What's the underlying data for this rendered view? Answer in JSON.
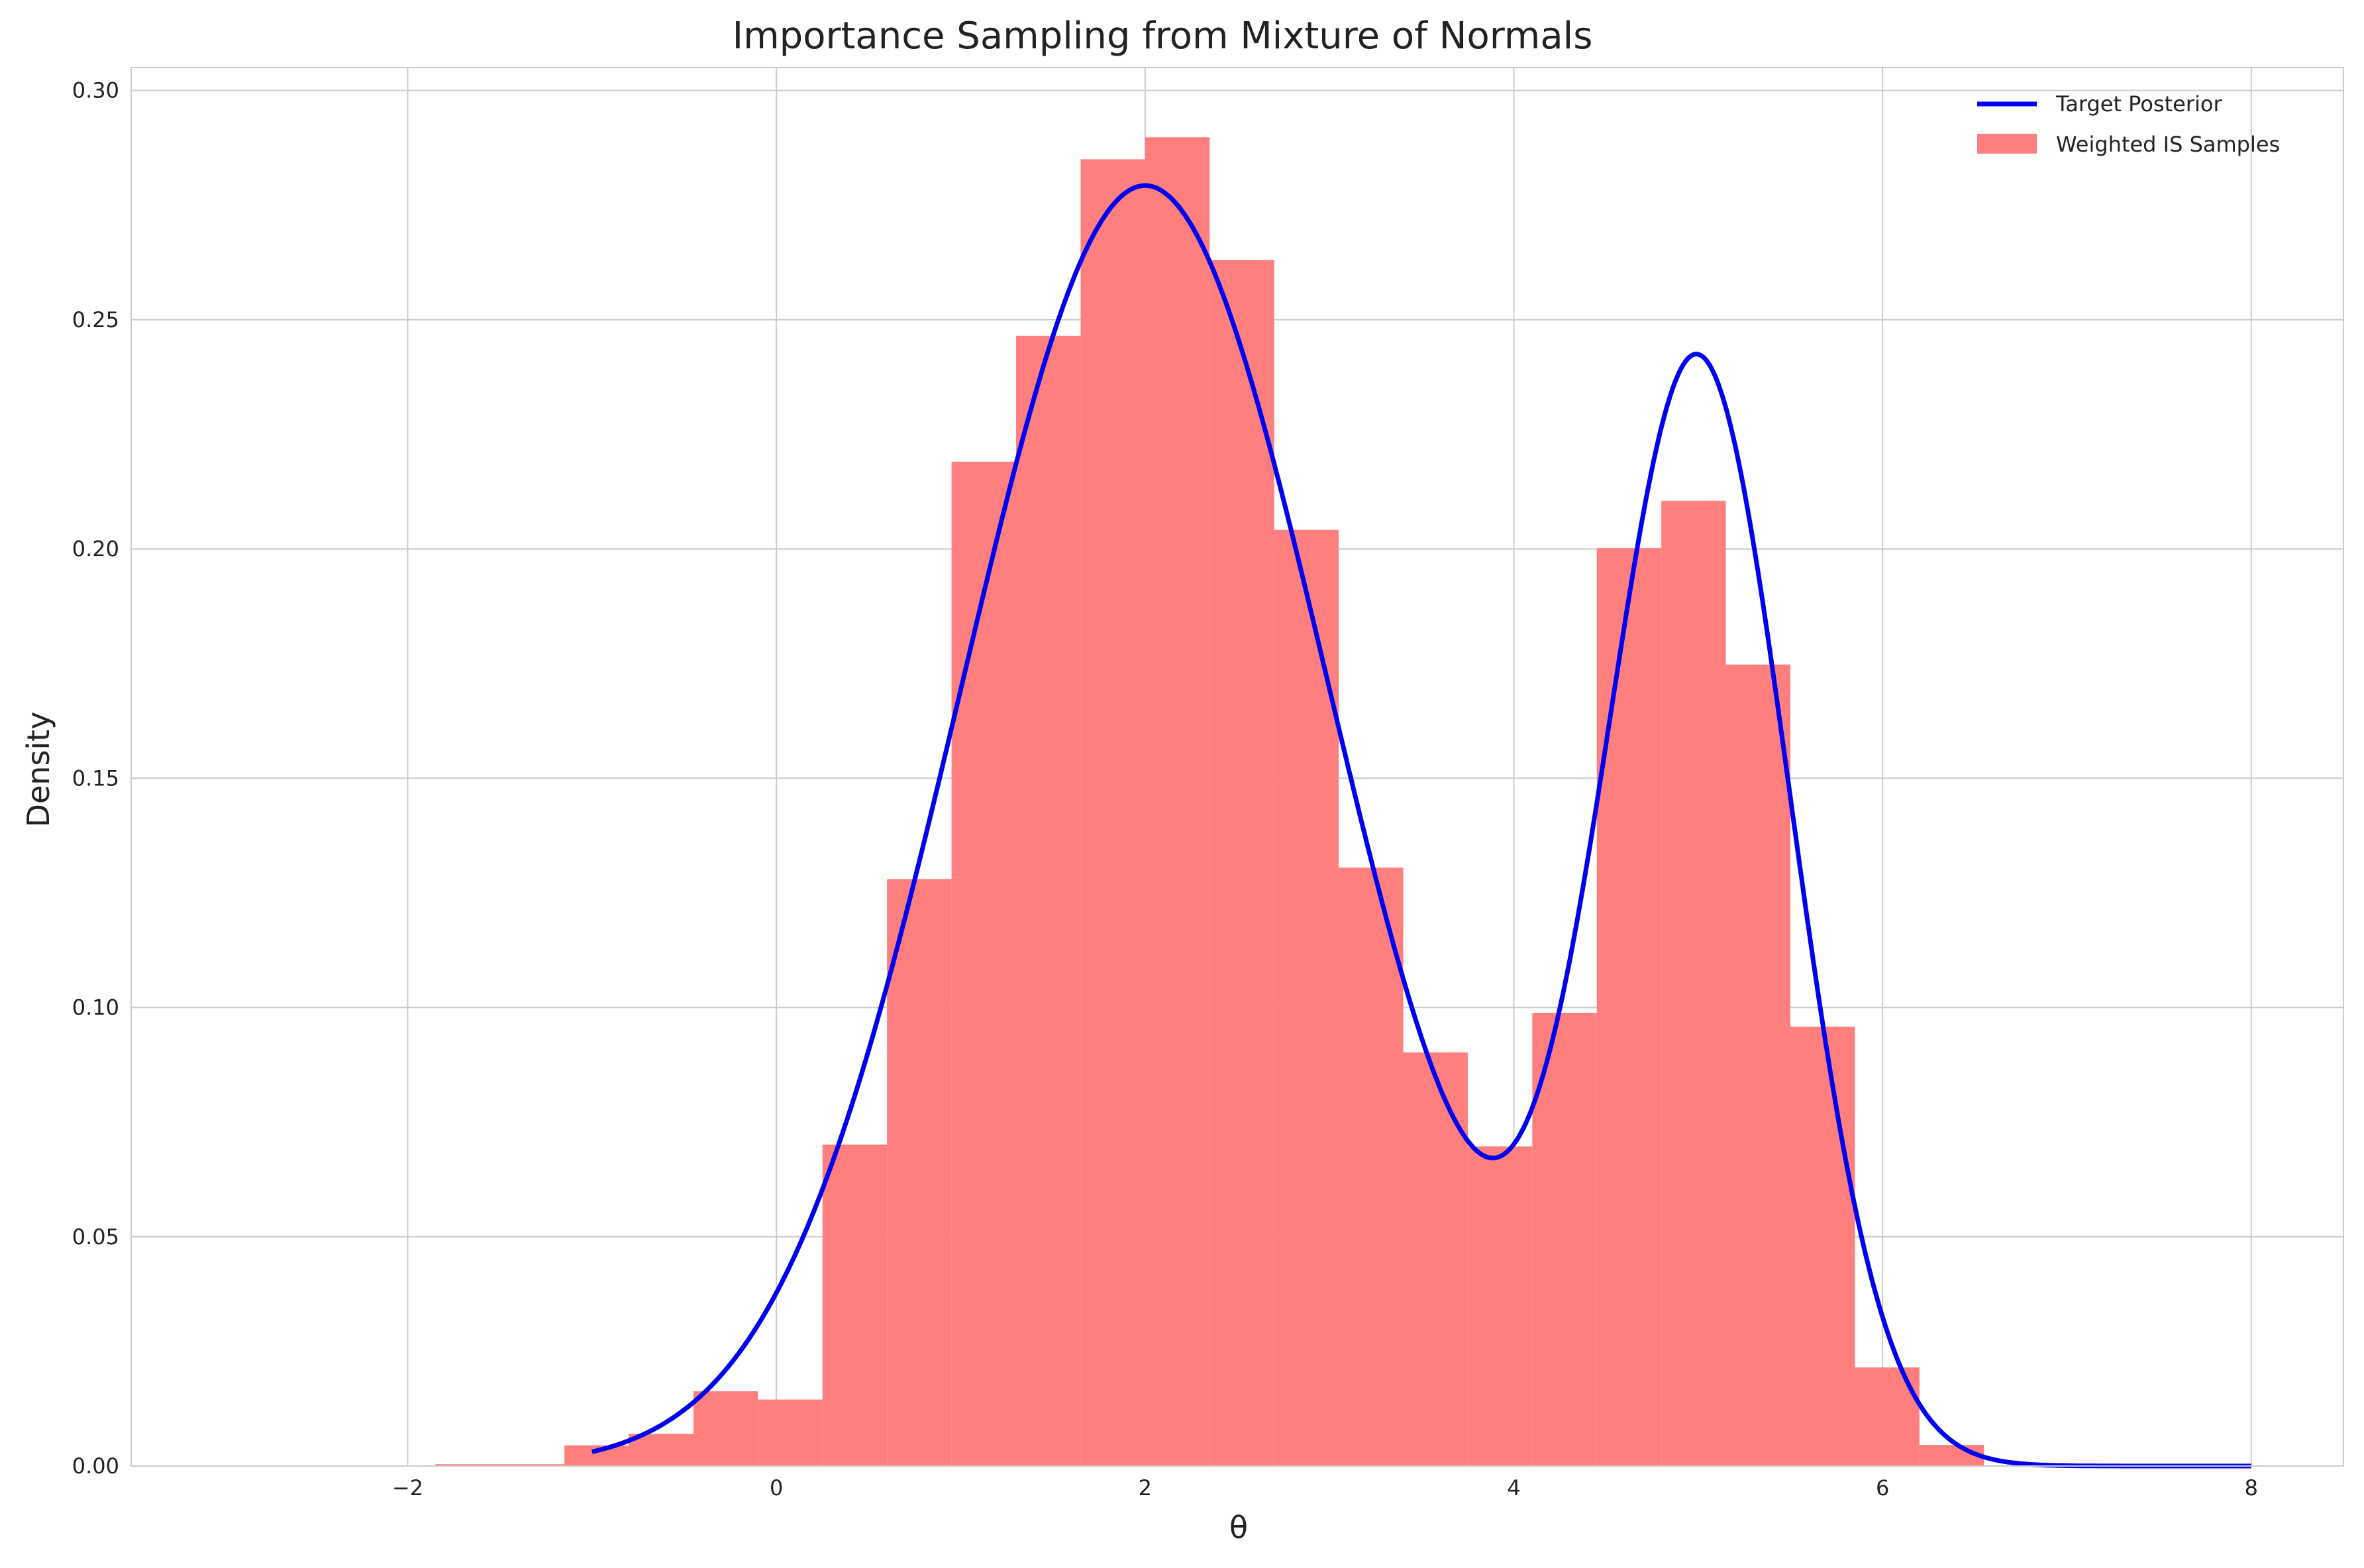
{
  "chart_data": {
    "type": "bar",
    "title": "Importance Sampling from Mixture of Normals",
    "xlabel": "θ",
    "ylabel": "Density",
    "xlim": [
      -3.5,
      8.5
    ],
    "ylim": [
      0,
      0.305
    ],
    "grid": true,
    "legend_position": "top-right",
    "x_ticks": [
      {
        "value": -2,
        "label": "−2"
      },
      {
        "value": 0,
        "label": "0"
      },
      {
        "value": 2,
        "label": "2"
      },
      {
        "value": 4,
        "label": "4"
      },
      {
        "value": 6,
        "label": "6"
      },
      {
        "value": 8,
        "label": "8"
      }
    ],
    "y_ticks": [
      {
        "value": 0,
        "label": "0.00"
      },
      {
        "value": 0.05,
        "label": "0.05"
      },
      {
        "value": 0.1,
        "label": "0.10"
      },
      {
        "value": 0.15,
        "label": "0.15"
      },
      {
        "value": 0.2,
        "label": "0.20"
      },
      {
        "value": 0.25,
        "label": "0.25"
      },
      {
        "value": 0.3,
        "label": "0.30"
      }
    ],
    "histogram": {
      "name": "Weighted IS Samples",
      "color": "#ff7f7f",
      "bin_edges": [
        -1.85,
        -1.5,
        -1.15,
        -0.8,
        -0.45,
        -0.1,
        0.25,
        0.6,
        0.95,
        1.3,
        1.65,
        2.0,
        2.35,
        2.7,
        3.05,
        3.4,
        3.75,
        4.1,
        4.45,
        4.8,
        5.15,
        5.5,
        5.85,
        6.2,
        6.55
      ],
      "densities": [
        0.0004,
        0.0004,
        0.0045,
        0.007,
        0.0163,
        0.0145,
        0.0701,
        0.128,
        0.219,
        0.2465,
        0.285,
        0.2898,
        0.263,
        0.2042,
        0.1305,
        0.0902,
        0.0697,
        0.0988,
        0.2002,
        0.2105,
        0.1748,
        0.0958,
        0.0215,
        0.0046
      ]
    },
    "line": {
      "name": "Target Posterior",
      "color": "#0000ee",
      "x_start": -1.0,
      "x_end": 8.0
    }
  }
}
